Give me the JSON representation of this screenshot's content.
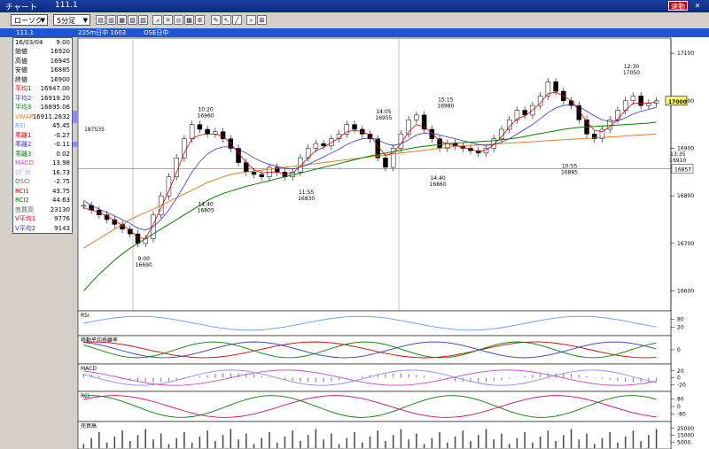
{
  "window": {
    "title": "チャート",
    "symbol": "111.1",
    "sokudo_badge": "速動",
    "close_glyph": "✕"
  },
  "toolbar": {
    "chart_type": "ローソク",
    "interval": "5分足"
  },
  "infobar": {
    "symbol": "111.1",
    "market1": "225m日中 1603",
    "market2": "OSE日中"
  },
  "panel": {
    "date": "16/03/04",
    "time": "9:00",
    "rows": [
      {
        "label": "始値",
        "value": "16920",
        "color": "#000000"
      },
      {
        "label": "高値",
        "value": "16945",
        "color": "#000000"
      },
      {
        "label": "安値",
        "value": "16885",
        "color": "#000000"
      },
      {
        "label": "終値",
        "value": "16900",
        "color": "#000000"
      },
      {
        "label": "平均1",
        "value": "16947.00",
        "color": "#d40000"
      },
      {
        "label": "平均2",
        "value": "16919.20",
        "color": "#3333cc"
      },
      {
        "label": "平均3",
        "value": "16895.06",
        "color": "#008000"
      },
      {
        "label": "VWAP",
        "value": "16911.2832",
        "color": "#e08020"
      },
      {
        "label": "RSI",
        "value": "45.45",
        "color": "#6699ff"
      },
      {
        "label": "乖離1",
        "value": "-0.27",
        "color": "#d40000"
      },
      {
        "label": "乖離2",
        "value": "-0.11",
        "color": "#3333cc"
      },
      {
        "label": "乖離3",
        "value": "0.02",
        "color": "#008000"
      },
      {
        "label": "MACD",
        "value": "13.98",
        "color": "#cc44cc"
      },
      {
        "label": "ｼｸﾞﾅﾙ",
        "value": "16.73",
        "color": "#8888ff"
      },
      {
        "label": "OSCI",
        "value": "-2.75",
        "color": "#666666"
      },
      {
        "label": "RCI1",
        "value": "43.75",
        "color": "#d40000"
      },
      {
        "label": "RCI2",
        "value": "44.63",
        "color": "#008000"
      },
      {
        "label": "売買高",
        "value": "23130",
        "color": "#555555"
      },
      {
        "label": "V平均1",
        "value": "9776",
        "color": "#d40000"
      },
      {
        "label": "V平均2",
        "value": "9143",
        "color": "#3333cc"
      }
    ]
  },
  "chart_data": {
    "type": "line",
    "price_axis": {
      "ticks": [
        "17100",
        "17000",
        "16900",
        "16800",
        "16700",
        "16600"
      ],
      "ylim": [
        16560,
        17130
      ]
    },
    "current_price_tag": "17000",
    "cursor_price_tag": "16857",
    "volume_profile_label": "187535",
    "annotations": [
      {
        "time": "14:40",
        "value": "16805"
      },
      {
        "time": "10:20",
        "value": "16960"
      },
      {
        "time": "11:55",
        "value": "16830"
      },
      {
        "time": "14:05",
        "value": "16955"
      },
      {
        "time": "15:15",
        "value": "16980"
      },
      {
        "time": "14:40",
        "value": "16860"
      },
      {
        "time": "10:55",
        "value": "16885"
      },
      {
        "time": "12:30",
        "value": "17050"
      },
      {
        "time": "13:35",
        "value": "16910"
      },
      {
        "time": "9:00",
        "value": "16690"
      }
    ],
    "close": [
      16780,
      16770,
      16760,
      16750,
      16740,
      16730,
      16720,
      16700,
      16710,
      16760,
      16800,
      16840,
      16880,
      16920,
      16950,
      16940,
      16930,
      16935,
      16920,
      16900,
      16870,
      16850,
      16845,
      16840,
      16860,
      16850,
      16840,
      16850,
      16880,
      16900,
      16910,
      16905,
      16920,
      16930,
      16950,
      16940,
      16930,
      16920,
      16880,
      16860,
      16900,
      16930,
      16960,
      16970,
      16940,
      16920,
      16900,
      16910,
      16905,
      16900,
      16895,
      16890,
      16900,
      16920,
      16940,
      16960,
      16980,
      16970,
      16990,
      17010,
      17040,
      17020,
      17000,
      16990,
      16960,
      16930,
      16920,
      16940,
      16960,
      16980,
      17000,
      17010,
      16990,
      16995,
      17000
    ],
    "ma1": [
      16775,
      16770,
      16765,
      16758,
      16748,
      16738,
      16728,
      16712,
      16710,
      16740,
      16775,
      16810,
      16850,
      16890,
      16920,
      16928,
      16930,
      16930,
      16925,
      16910,
      16890,
      16870,
      16855,
      16848,
      16850,
      16850,
      16846,
      16848,
      16862,
      16880,
      16895,
      16902,
      16912,
      16922,
      16935,
      16938,
      16935,
      16928,
      16905,
      16885,
      16890,
      16910,
      16935,
      16950,
      16945,
      16932,
      16915,
      16910,
      16906,
      16902,
      16898,
      16893,
      16896,
      16908,
      16925,
      16945,
      16962,
      16968,
      16980,
      16995,
      17015,
      17018,
      17010,
      17000,
      16980,
      16955,
      16938,
      16935,
      16945,
      16962,
      16980,
      16995,
      16995,
      16995,
      16998
    ],
    "ma2": [
      16790,
      16780,
      16772,
      16765,
      16758,
      16750,
      16742,
      16732,
      16728,
      16735,
      16750,
      16770,
      16795,
      16822,
      16850,
      16872,
      16888,
      16898,
      16903,
      16903,
      16898,
      16890,
      16880,
      16872,
      16866,
      16862,
      16858,
      16857,
      16860,
      16866,
      16874,
      16882,
      16890,
      16898,
      16908,
      16915,
      16920,
      16922,
      16918,
      16910,
      16906,
      16910,
      16918,
      16928,
      16932,
      16932,
      16928,
      16924,
      16920,
      16916,
      16912,
      16908,
      16906,
      16908,
      16913,
      16920,
      16930,
      16940,
      16950,
      16962,
      16975,
      16985,
      16990,
      16992,
      16988,
      16978,
      16968,
      16960,
      16956,
      16958,
      16964,
      16972,
      16978,
      16982,
      16986
    ],
    "ma3": [
      16600,
      16618,
      16635,
      16650,
      16665,
      16678,
      16690,
      16700,
      16710,
      16720,
      16730,
      16740,
      16750,
      16760,
      16770,
      16780,
      16790,
      16798,
      16805,
      16810,
      16815,
      16820,
      16824,
      16828,
      16832,
      16836,
      16840,
      16844,
      16848,
      16852,
      16856,
      16860,
      16864,
      16868,
      16872,
      16876,
      16880,
      16884,
      16887,
      16890,
      16893,
      16896,
      16899,
      16902,
      16904,
      16906,
      16908,
      16910,
      16911,
      16912,
      16913,
      16914,
      16915,
      16916,
      16918,
      16920,
      16922,
      16925,
      16928,
      16931,
      16934,
      16937,
      16940,
      16942,
      16944,
      16945,
      16946,
      16947,
      16948,
      16949,
      16950,
      16951,
      16952,
      16953,
      16955
    ],
    "vwap": [
      16690,
      16700,
      16710,
      16720,
      16730,
      16740,
      16750,
      16758,
      16765,
      16772,
      16780,
      16788,
      16796,
      16804,
      16812,
      16820,
      16828,
      16834,
      16840,
      16845,
      16848,
      16850,
      16852,
      16854,
      16856,
      16858,
      16860,
      16862,
      16864,
      16866,
      16868,
      16870,
      16872,
      16874,
      16876,
      16878,
      16880,
      16882,
      16884,
      16886,
      16888,
      16890,
      16892,
      16894,
      16896,
      16898,
      16900,
      16902,
      16904,
      16905,
      16906,
      16907,
      16908,
      16909,
      16910,
      16911,
      16912,
      16913,
      16914,
      16915,
      16916,
      16917,
      16918,
      16919,
      16920,
      16921,
      16922,
      16923,
      16924,
      16925,
      16926,
      16927,
      16928,
      16929,
      16930
    ],
    "sub_panels": [
      {
        "label": "RSI",
        "ticks": [
          "80",
          "20"
        ]
      },
      {
        "label": "移動平均乖離率",
        "ticks": [
          "0"
        ]
      },
      {
        "label": "MACD",
        "ticks": [
          "20",
          "0",
          "-20"
        ]
      },
      {
        "label": "RCI",
        "ticks": [
          "80",
          "0",
          "-80"
        ]
      },
      {
        "label": "売買高",
        "ticks": [
          "25000",
          "15000",
          "5000"
        ]
      }
    ]
  },
  "colors": {
    "ma1": "#d40000",
    "ma2": "#3333cc",
    "ma3": "#008000",
    "vwap": "#e08020",
    "candle": "#000000",
    "rsi": "#6699ff",
    "macd": "#cc44cc",
    "signal": "#8888ff",
    "rci1": "#e0006a",
    "rci2": "#008000"
  }
}
